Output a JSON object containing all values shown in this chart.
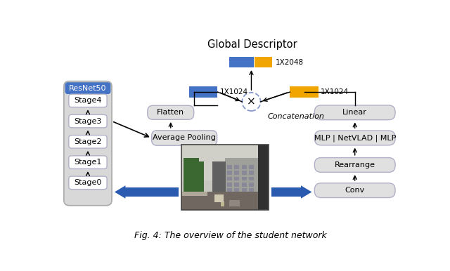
{
  "title": "Global Descriptor",
  "caption": "Fig. 4: The overview of the student network",
  "bg_color": "#ffffff",
  "box_fill": "#e0e0e0",
  "box_edge": "#b0b0c8",
  "resnet_bg": "#4472c4",
  "resnet_text": "#ffffff",
  "resnet_container_fill": "#d8d8d8",
  "resnet_container_edge": "#aaaaaa",
  "blue_rect": "#4472c4",
  "yellow_rect": "#f0a500",
  "arrow_blue": "#2a5bb0",
  "arrow_black": "#111111",
  "stage_labels": [
    "Stage4",
    "Stage3",
    "Stage2",
    "Stage1",
    "Stage0"
  ],
  "right_boxes": [
    "Linear",
    "MLP | NetVLAD | MLP",
    "Rearrange",
    "Conv"
  ],
  "label_1x2048": "1X2048",
  "label_1x1024_left": "1X1024",
  "label_1x1024_right": "1X1024",
  "concat_label": "Concatenation",
  "mult_symbol": "x"
}
